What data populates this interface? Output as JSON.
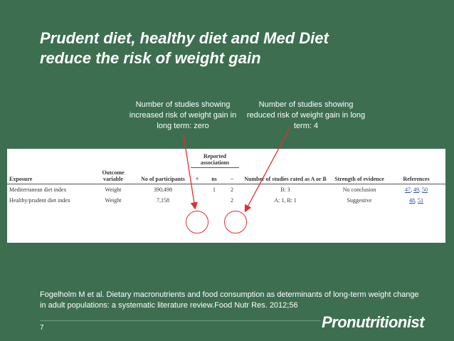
{
  "slide": {
    "title_line1": "Prudent diet, healthy diet and Med Diet",
    "title_line2": "reduce the risk of weight gain",
    "note_left": "Number of studies showing increased risk of weight gain in long term: zero",
    "note_right": "Number of studies showing reduced risk of weight gain in long term: 4",
    "citation": "Fogelholm M et al.  Dietary macronutrients and food consumption as determinants of long-term weight change in adult populations: a systematic literature review.Food Nutr Res. 2012;56",
    "page_number": "7",
    "logo_text": "Pronutritionist"
  },
  "table": {
    "group_header": "Reported associations",
    "headers": {
      "exposure": "Exposure",
      "outcome": "Outcome variable",
      "participants": "No of participants",
      "plus": "+",
      "ns": "ns",
      "minus": "−",
      "rated": "Number of studies rated as A or B",
      "strength": "Strength of evidence",
      "refs": "References"
    },
    "rows": [
      {
        "exposure": "Mediterranean diet index",
        "outcome": "Weight",
        "participants": "390,498",
        "plus": "",
        "ns": "1",
        "minus": "2",
        "rated": "B: 3",
        "strength": "No conclusion",
        "refs": [
          "47",
          "49",
          "50"
        ]
      },
      {
        "exposure": "Healthy/prudent diet index",
        "outcome": "Weight",
        "participants": "7,158",
        "plus": "",
        "ns": "",
        "minus": "2",
        "rated": "A: 1, B: 1",
        "strength": "Suggestive",
        "refs": [
          "48",
          "51"
        ]
      }
    ]
  },
  "colors": {
    "background": "#3d6e50",
    "highlight": "#e03030"
  }
}
